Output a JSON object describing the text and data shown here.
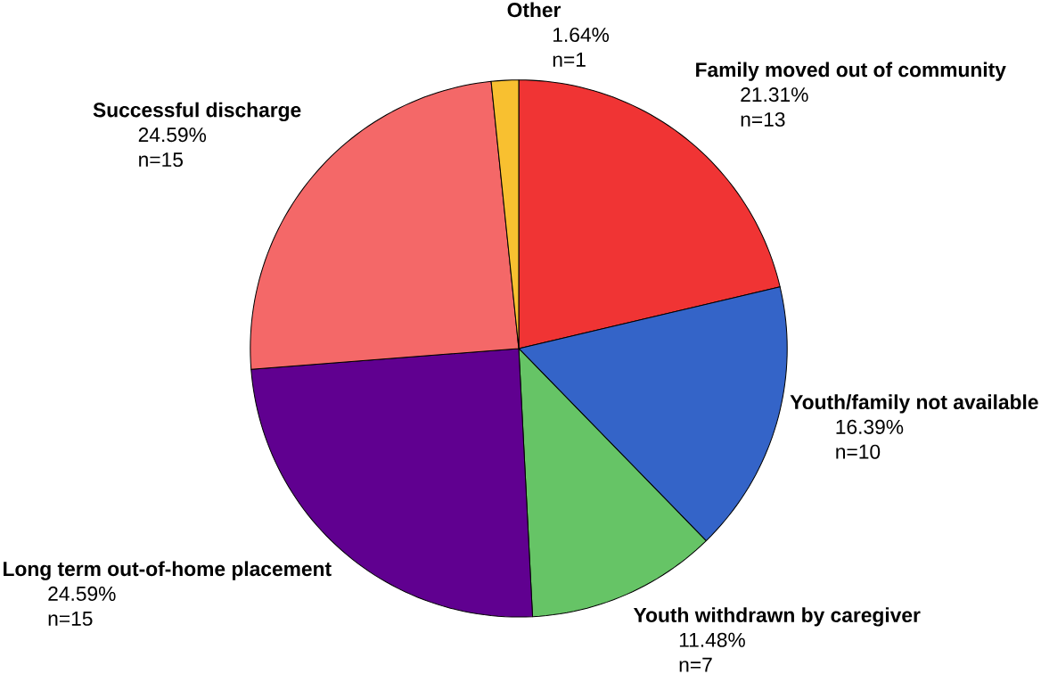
{
  "chart_data": {
    "type": "pie",
    "categories": [
      "Family moved out of community",
      "Youth/family not available",
      "Youth withdrawn by caregiver",
      "Long term out-of-home placement",
      "Successful discharge",
      "Other"
    ],
    "values": [
      21.31,
      16.39,
      11.48,
      24.59,
      24.59,
      1.64
    ],
    "colors": [
      "#f03434",
      "#3464c8",
      "#66c466",
      "#600090",
      "#f46868",
      "#f8c030"
    ],
    "value_labels": [
      "21.31%",
      "16.39%",
      "11.48%",
      "24.59%",
      "24.59%",
      "1.64%"
    ],
    "annotations": [
      "n=13",
      "n=10",
      "n=7",
      "n=15",
      "n=15",
      "n=1"
    ]
  }
}
